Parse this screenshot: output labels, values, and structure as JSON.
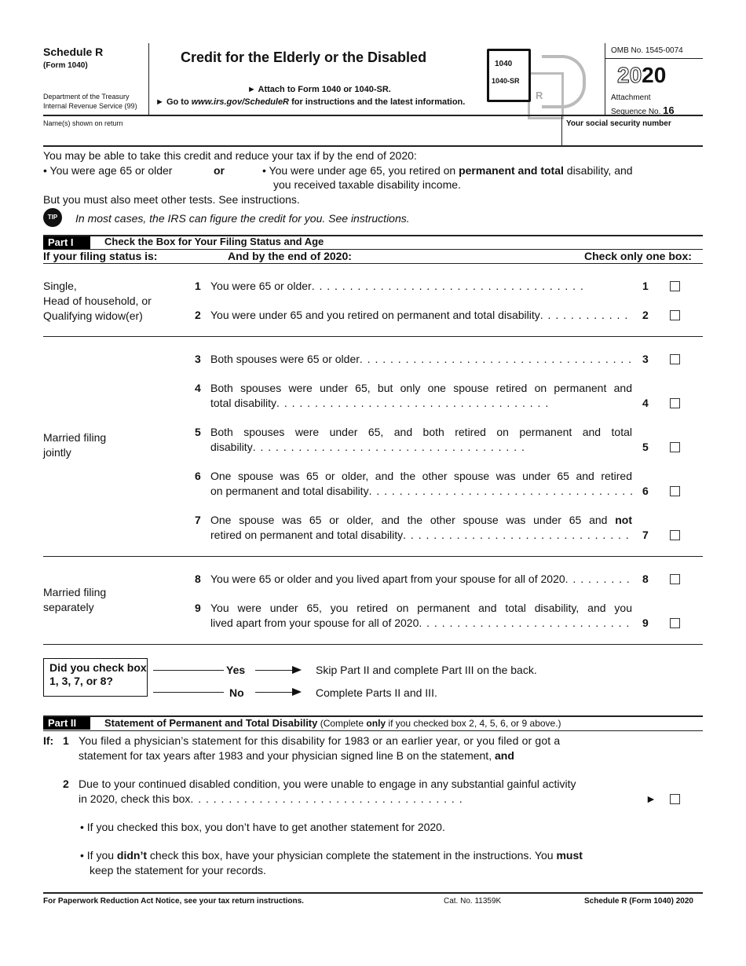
{
  "header": {
    "schedule": "Schedule R",
    "form": "(Form 1040)",
    "dept1": "Department of the Treasury",
    "dept2": "Internal Revenue Service (99)",
    "title": "Credit for the Elderly or the Disabled",
    "attach": "► Attach to Form 1040 or 1040-SR.",
    "goto_pre": "► Go to ",
    "goto_url": "www.irs.gov/ScheduleR",
    "goto_post": " for instructions and the latest information.",
    "icon_1040": "1040",
    "icon_1040sr": "1040-SR",
    "icon_r": "R",
    "omb": "OMB No. 1545-0074",
    "year_outline": "20",
    "year_bold": "20",
    "attachment": "Attachment",
    "sequence": "Sequence No.",
    "sequence_no": "16"
  },
  "names": {
    "names_label": "Name(s) shown on return",
    "ssn_label": "Your social security number"
  },
  "intro": {
    "line1": "You may be able to take this credit and reduce your tax if by the end of 2020:",
    "bullet1": "• You were age 65 or older",
    "or": "or",
    "bullet2_pre": "• You were under age 65, you retired on ",
    "bullet2_bold": "permanent and total",
    "bullet2_post": " disability, and",
    "bullet2_cont": "you received taxable disability income.",
    "line3": "But you must also meet other tests. See instructions.",
    "tip_icon": "TIP",
    "tip": "In most cases, the IRS can figure the credit for you. See instructions."
  },
  "part1": {
    "label": "Part I",
    "title": "Check the Box for Your Filing Status and Age",
    "col1": "If your filing status is:",
    "col2": "And by the end of 2020:",
    "col3": "Check only one box:",
    "groups": [
      "Single,\nHead of household, or\nQualifying widow(er)",
      "Married filing\njointly",
      "Married filing\nseparately"
    ],
    "rows": [
      {
        "n": "1",
        "l1": "You were 65 or older",
        "l2": ""
      },
      {
        "n": "2",
        "l1": "You were under 65 and you retired on permanent and total disability",
        "l2": ""
      },
      {
        "n": "3",
        "l1": "Both spouses were 65 or older",
        "l2": ""
      },
      {
        "n": "4",
        "l1": "Both spouses were under 65, but only one spouse retired on permanent and",
        "l2": "total disability"
      },
      {
        "n": "5",
        "l1": "Both spouses were under 65, and both retired on permanent and total",
        "l2": "disability"
      },
      {
        "n": "6",
        "l1": "One spouse was 65 or older, and the other spouse was under 65 and retired",
        "l2": "on permanent and total disability"
      },
      {
        "n": "7",
        "l1": "One spouse was 65 or older, and the other spouse was under 65 and ",
        "l1b": "not",
        "l2": "retired on permanent and total disability"
      },
      {
        "n": "8",
        "l1": "You were 65 or older and you lived apart from your spouse for all of 2020",
        "l2": ""
      },
      {
        "n": "9",
        "l1": "You were under 65, you retired on permanent and total disability, and you",
        "l2": "lived apart from your spouse for all of 2020"
      }
    ]
  },
  "flow": {
    "question": "Did you check box 1, 3, 7, or 8?",
    "yes": "Yes",
    "no": "No",
    "yes_action": "Skip Part II and complete Part III on the back.",
    "no_action": "Complete Parts II and III."
  },
  "part2": {
    "label": "Part II",
    "title": "Statement of Permanent and Total Disability",
    "note_pre": " (Complete ",
    "note_bold": "only",
    "note_post": " if you checked box 2, 4, 5, 6, or 9 above.)",
    "if": "If:",
    "item1_n": "1",
    "item1_l1": "You filed a physician’s statement for this disability for 1983 or an earlier year, or you filed or got a",
    "item1_l2": "statement for tax years after 1983 and your physician signed line B on the statement, ",
    "item1_and": "and",
    "item2_n": "2",
    "item2_l1": "Due to your continued disabled condition, you were unable to engage in any substantial gainful activity",
    "item2_l2": "in 2020, check this box",
    "bullet1": "• If you checked this box, you don’t have to get another statement for 2020.",
    "bullet2_pre": "• If you ",
    "bullet2_b1": "didn’t",
    "bullet2_mid": " check this box, have your physician complete the statement in the instructions. You ",
    "bullet2_b2": "must",
    "bullet2_l2": "keep the statement for your records."
  },
  "footer": {
    "paperwork": "For Paperwork Reduction Act Notice, see your tax return instructions.",
    "cat": "Cat. No. 11359K",
    "form": "Schedule R (Form 1040) 2020"
  }
}
